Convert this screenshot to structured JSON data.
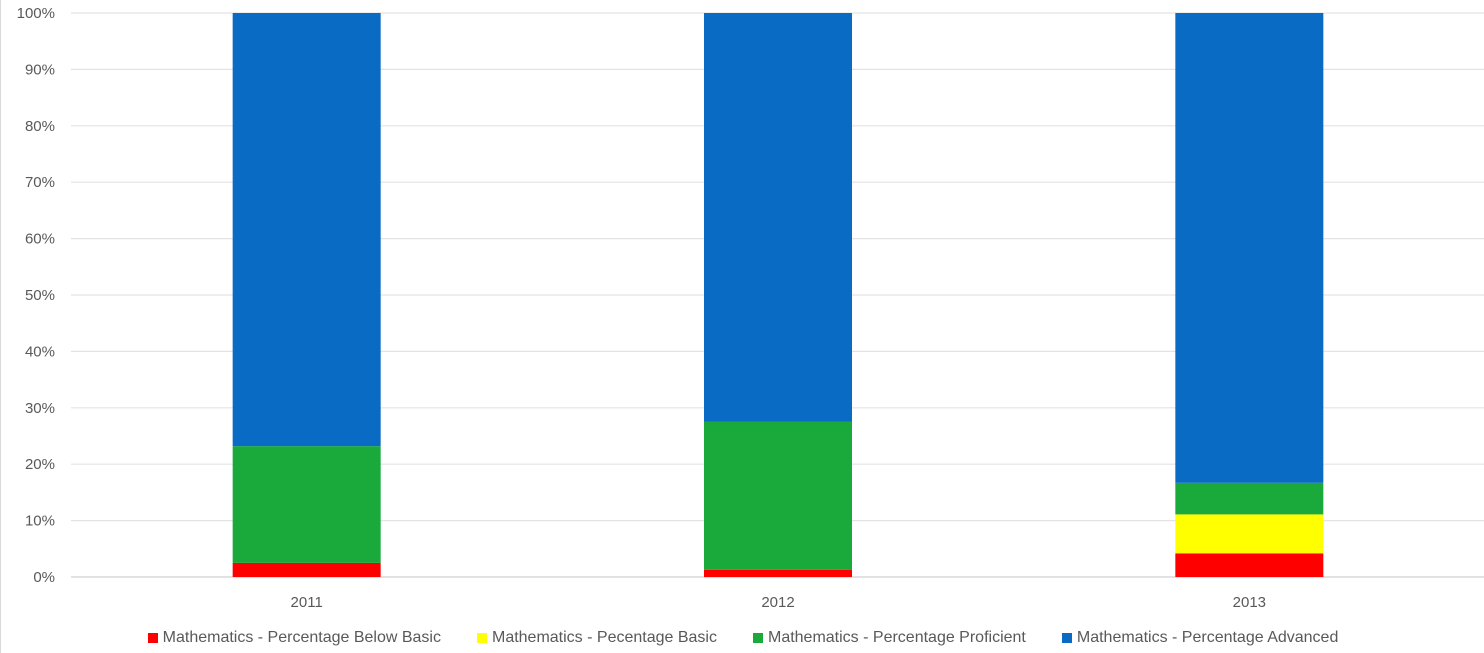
{
  "chart_data": {
    "type": "bar",
    "stacked": true,
    "categories": [
      "2011",
      "2012",
      "2013"
    ],
    "series": [
      {
        "name": "Mathematics - Percentage Below Basic",
        "color": "#ff0000",
        "values": [
          2.5,
          1.3,
          4.2
        ]
      },
      {
        "name": "Mathematics - Pecentage Basic",
        "color": "#ffff00",
        "values": [
          0,
          0,
          6.9
        ]
      },
      {
        "name": "Mathematics - Percentage Proficient",
        "color": "#1aaa3c",
        "values": [
          20.7,
          26.2,
          5.6
        ]
      },
      {
        "name": "Mathematics - Percentage Advanced",
        "color": "#0a6bc4",
        "values": [
          76.8,
          72.5,
          83.3
        ]
      }
    ],
    "ylim": [
      0,
      100
    ],
    "yticks": [
      "0%",
      "10%",
      "20%",
      "30%",
      "40%",
      "50%",
      "60%",
      "70%",
      "80%",
      "90%",
      "100%"
    ],
    "grid": true,
    "legend_position": "bottom",
    "title": "",
    "xlabel": "",
    "ylabel": ""
  }
}
